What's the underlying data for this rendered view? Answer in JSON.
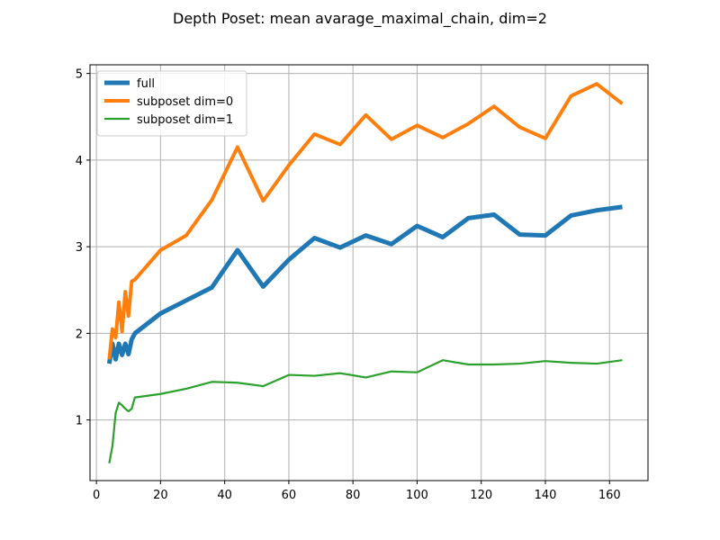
{
  "chart_data": {
    "type": "line",
    "title": "Depth Poset: mean avarage_maximal_chain, dim=2",
    "xlabel": "",
    "ylabel": "",
    "xlim": [
      -2.0,
      172.0
    ],
    "ylim": [
      0.3,
      5.1
    ],
    "xticks": [
      0,
      20,
      40,
      60,
      80,
      100,
      120,
      140,
      160
    ],
    "yticks": [
      1,
      2,
      3,
      4,
      5
    ],
    "grid": true,
    "legend_position": "top-left",
    "series": [
      {
        "name": "full",
        "color": "#1f77b4",
        "x": [
          4,
          5,
          6,
          7,
          8,
          9,
          10,
          11,
          12,
          20,
          28,
          36,
          44,
          52,
          60,
          68,
          76,
          84,
          92,
          100,
          108,
          116,
          124,
          132,
          140,
          148,
          156,
          164
        ],
        "y": [
          1.65,
          1.88,
          1.7,
          1.88,
          1.75,
          1.88,
          1.76,
          1.93,
          2.0,
          2.23,
          2.38,
          2.53,
          2.96,
          2.54,
          2.85,
          3.1,
          2.99,
          3.13,
          3.03,
          3.24,
          3.11,
          3.33,
          3.37,
          3.14,
          3.13,
          3.36,
          3.42,
          3.46
        ]
      },
      {
        "name": "subposet dim=0",
        "color": "#ff7f0e",
        "x": [
          4,
          5,
          6,
          7,
          8,
          9,
          10,
          11,
          12,
          20,
          28,
          36,
          44,
          52,
          60,
          68,
          76,
          84,
          92,
          100,
          108,
          116,
          124,
          132,
          140,
          148,
          156,
          164
        ],
        "y": [
          1.7,
          2.05,
          1.95,
          2.36,
          2.02,
          2.48,
          2.2,
          2.6,
          2.62,
          2.96,
          3.13,
          3.54,
          4.15,
          3.53,
          3.94,
          4.3,
          4.18,
          4.52,
          4.24,
          4.4,
          4.26,
          4.42,
          4.62,
          4.38,
          4.25,
          4.74,
          4.88,
          4.65
        ]
      },
      {
        "name": "subposet dim=1",
        "color": "#2ca02c",
        "x": [
          4,
          5,
          6,
          7,
          8,
          9,
          10,
          11,
          12,
          20,
          28,
          36,
          44,
          52,
          60,
          68,
          76,
          84,
          92,
          100,
          108,
          116,
          124,
          132,
          140,
          148,
          156,
          164
        ],
        "y": [
          0.5,
          0.7,
          1.08,
          1.2,
          1.17,
          1.13,
          1.1,
          1.13,
          1.26,
          1.3,
          1.36,
          1.44,
          1.43,
          1.39,
          1.52,
          1.51,
          1.54,
          1.49,
          1.56,
          1.55,
          1.69,
          1.64,
          1.64,
          1.65,
          1.68,
          1.66,
          1.65,
          1.69
        ]
      }
    ]
  }
}
